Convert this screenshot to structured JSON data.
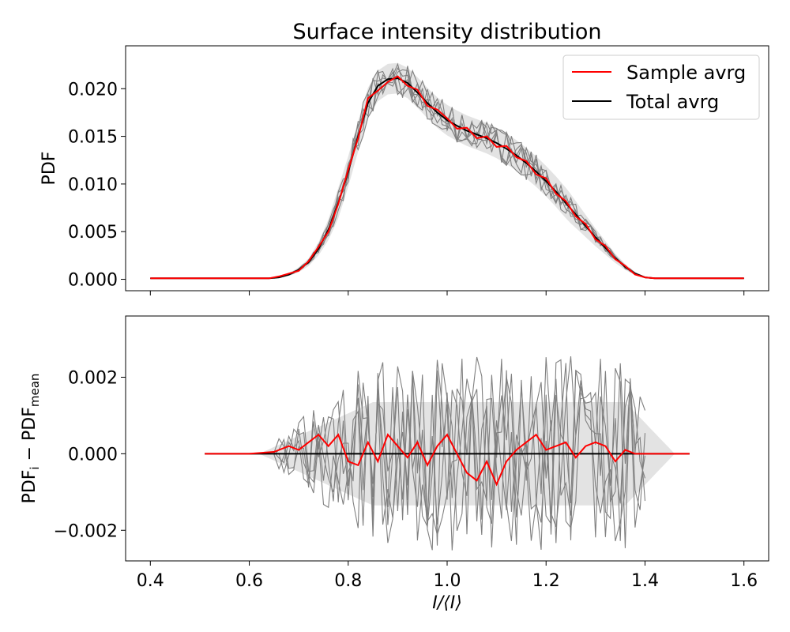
{
  "chart_data": [
    {
      "type": "line",
      "title": "Surface intensity distribution",
      "xlabel": "I/⟨I⟩",
      "ylabel": "PDF",
      "xlim": [
        0.35,
        1.65
      ],
      "ylim": [
        -0.0012,
        0.0245
      ],
      "xticks": [
        0.4,
        0.6,
        0.8,
        1.0,
        1.2,
        1.4,
        1.6
      ],
      "xtick_labels_visible": false,
      "yticks": [
        0.0,
        0.005,
        0.01,
        0.015,
        0.02
      ],
      "ytick_labels": [
        "0.000",
        "0.005",
        "0.010",
        "0.015",
        "0.020"
      ],
      "legend": {
        "position": "top-right",
        "entries": [
          {
            "label": "Sample avrg",
            "color": "#ff0000"
          },
          {
            "label": "Total avrg",
            "color": "#000000"
          }
        ]
      },
      "x": [
        0.4,
        0.45,
        0.5,
        0.55,
        0.6,
        0.64,
        0.66,
        0.68,
        0.7,
        0.72,
        0.74,
        0.76,
        0.78,
        0.8,
        0.82,
        0.84,
        0.86,
        0.88,
        0.9,
        0.92,
        0.94,
        0.96,
        0.98,
        1.0,
        1.02,
        1.04,
        1.06,
        1.08,
        1.1,
        1.12,
        1.14,
        1.16,
        1.18,
        1.2,
        1.22,
        1.24,
        1.26,
        1.28,
        1.3,
        1.32,
        1.34,
        1.36,
        1.38,
        1.4,
        1.42,
        1.45,
        1.5,
        1.55,
        1.6
      ],
      "series": [
        {
          "name": "Total avrg",
          "color": "#000000",
          "values": [
            0.0001,
            0.0001,
            0.0001,
            0.0001,
            0.0001,
            0.0001,
            0.0002,
            0.0005,
            0.001,
            0.0018,
            0.0032,
            0.0052,
            0.008,
            0.0113,
            0.015,
            0.0185,
            0.0203,
            0.021,
            0.0211,
            0.0206,
            0.0196,
            0.0185,
            0.0175,
            0.0167,
            0.0161,
            0.0156,
            0.0152,
            0.0148,
            0.0143,
            0.0137,
            0.013,
            0.0122,
            0.0113,
            0.0103,
            0.0092,
            0.008,
            0.0068,
            0.0056,
            0.0044,
            0.0033,
            0.0022,
            0.0013,
            0.0006,
            0.0002,
            0.0001,
            0.0001,
            0.0001,
            0.0001,
            0.0001
          ]
        },
        {
          "name": "Sample avrg",
          "color": "#ff0000",
          "values": [
            0.0001,
            0.0001,
            0.0001,
            0.0001,
            0.0001,
            0.0001,
            0.0003,
            0.0006,
            0.0009,
            0.0019,
            0.0034,
            0.005,
            0.0079,
            0.0115,
            0.0148,
            0.019,
            0.0198,
            0.0207,
            0.0213,
            0.0203,
            0.0199,
            0.0182,
            0.0178,
            0.0169,
            0.0158,
            0.0159,
            0.0148,
            0.015,
            0.0139,
            0.014,
            0.0128,
            0.0124,
            0.011,
            0.0106,
            0.009,
            0.0082,
            0.0066,
            0.0058,
            0.0042,
            0.0035,
            0.0021,
            0.0014,
            0.0005,
            0.0002,
            0.0001,
            0.0001,
            0.0001,
            0.0001,
            0.0001
          ]
        }
      ]
    },
    {
      "type": "line",
      "xlabel": "I/⟨I⟩",
      "ylabel": "PDF_i − PDF_mean",
      "xlim": [
        0.35,
        1.65
      ],
      "ylim": [
        -0.0028,
        0.0036
      ],
      "xticks": [
        0.4,
        0.6,
        0.8,
        1.0,
        1.2,
        1.4,
        1.6
      ],
      "xtick_labels": [
        "0.4",
        "0.6",
        "0.8",
        "1.0",
        "1.2",
        "1.4",
        "1.6"
      ],
      "yticks": [
        -0.002,
        0.0,
        0.002
      ],
      "ytick_labels": [
        "−0.002",
        "0.000",
        "0.002"
      ],
      "x": [
        0.51,
        0.55,
        0.6,
        0.65,
        0.68,
        0.7,
        0.72,
        0.74,
        0.76,
        0.78,
        0.8,
        0.82,
        0.84,
        0.86,
        0.88,
        0.9,
        0.92,
        0.94,
        0.96,
        0.98,
        1.0,
        1.02,
        1.04,
        1.06,
        1.08,
        1.1,
        1.12,
        1.14,
        1.16,
        1.18,
        1.2,
        1.22,
        1.24,
        1.26,
        1.28,
        1.3,
        1.32,
        1.34,
        1.36,
        1.38,
        1.4,
        1.45,
        1.49
      ],
      "series": [
        {
          "name": "Sample avrg",
          "color": "#ff0000",
          "values": [
            0.0,
            0.0,
            0.0,
            5e-05,
            0.0002,
            0.0001,
            0.0003,
            0.0005,
            0.0002,
            0.0005,
            -0.0002,
            -0.0003,
            0.0003,
            -0.0002,
            0.0005,
            0.0002,
            -0.0001,
            0.0003,
            -0.0003,
            0.0002,
            0.0005,
            0.0,
            -0.0005,
            -0.0007,
            -0.0002,
            -0.0008,
            -0.0002,
            0.0001,
            0.0003,
            0.0005,
            0.0001,
            0.0002,
            0.0003,
            -0.0001,
            0.0002,
            0.0003,
            0.0002,
            -0.0002,
            0.0001,
            0.0,
            0.0,
            0.0,
            0.0
          ]
        },
        {
          "name": "Total avrg",
          "color": "#000000",
          "values": [
            0.0,
            0.0,
            0.0,
            0.0,
            0.0,
            0.0,
            0.0,
            0.0,
            0.0,
            0.0,
            0.0,
            0.0,
            0.0,
            0.0,
            0.0,
            0.0,
            0.0,
            0.0,
            0.0,
            0.0,
            0.0,
            0.0,
            0.0,
            0.0,
            0.0,
            0.0,
            0.0,
            0.0,
            0.0,
            0.0,
            0.0,
            0.0,
            0.0,
            0.0,
            0.0,
            0.0,
            0.0,
            0.0,
            0.0,
            0.0,
            0.0,
            0.0,
            0.0
          ]
        }
      ]
    }
  ],
  "colors": {
    "sample": "#ff0000",
    "total": "#000000",
    "individual": "#808080",
    "band": "#e0e0e0"
  }
}
